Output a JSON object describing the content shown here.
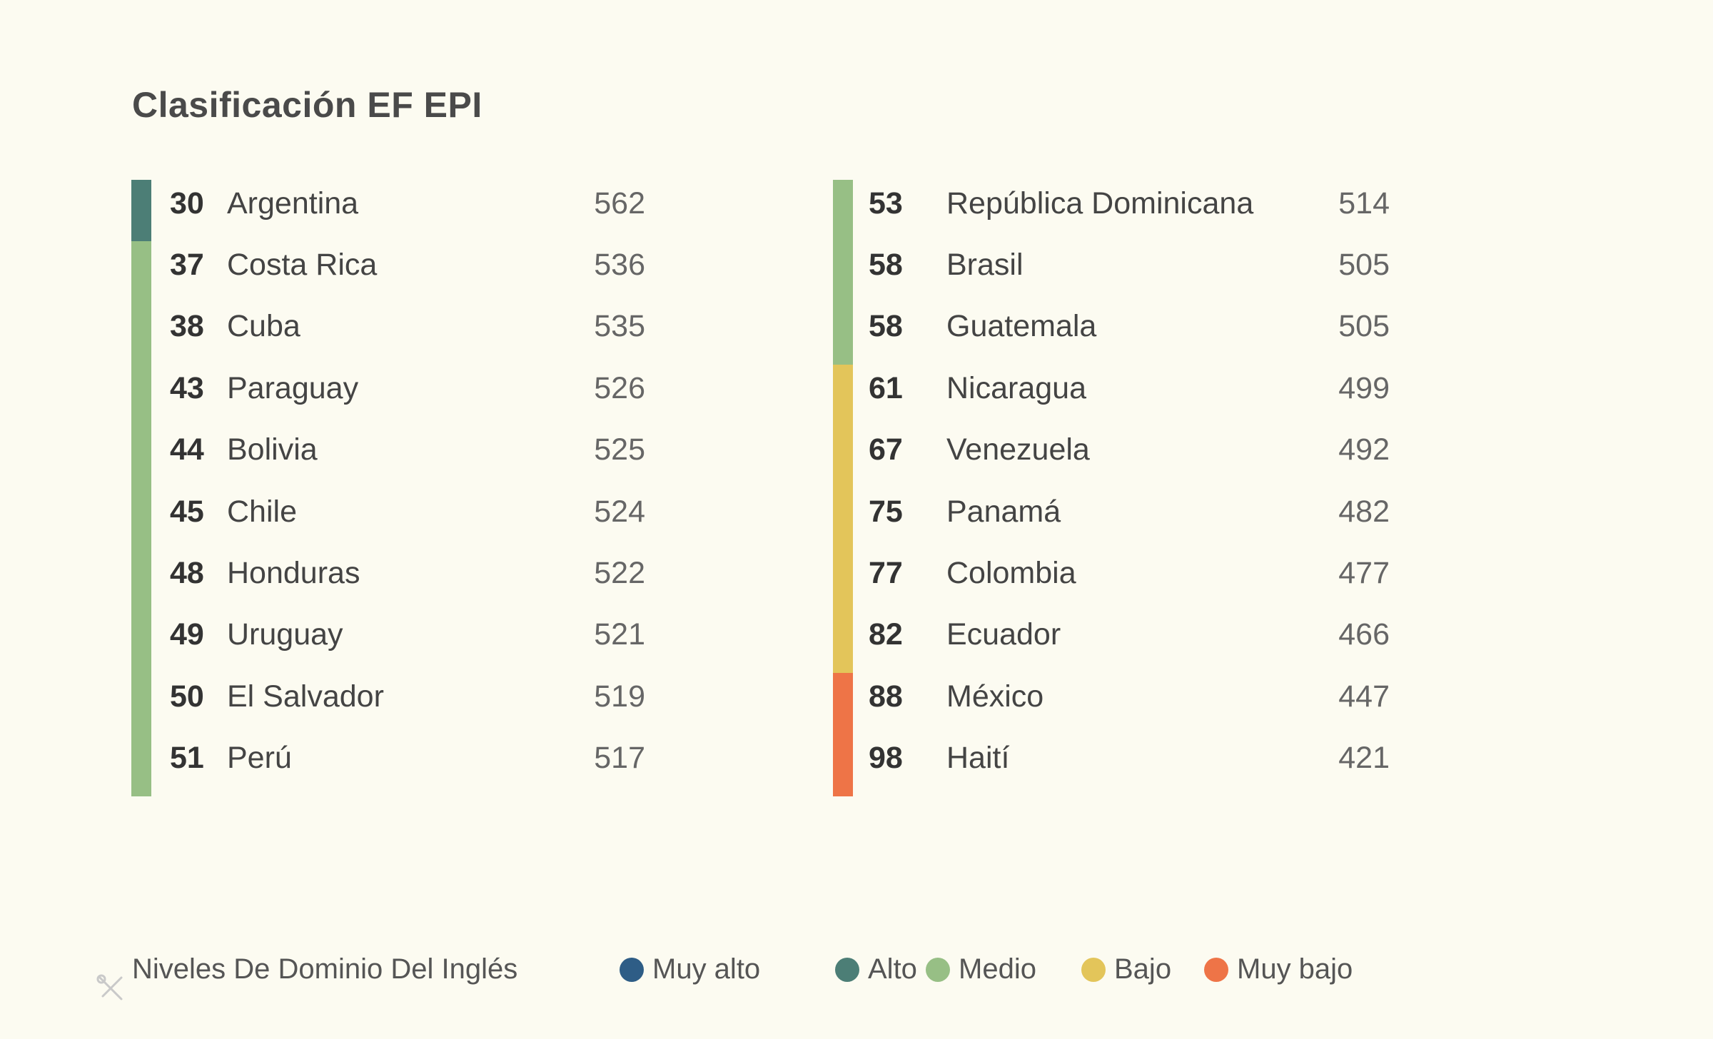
{
  "chart_data": {
    "type": "table",
    "title": "Clasificación EF EPI",
    "levels": [
      {
        "key": "muy_alto",
        "label": "Muy alto",
        "color": "#2e5d86"
      },
      {
        "key": "alto",
        "label": "Alto",
        "color": "#4c7e76"
      },
      {
        "key": "medio",
        "label": "Medio",
        "color": "#97bf85"
      },
      {
        "key": "bajo",
        "label": "Bajo",
        "color": "#e3c55a"
      },
      {
        "key": "muy_bajo",
        "label": "Muy bajo",
        "color": "#ee7447"
      }
    ],
    "legend_title": "Niveles De Dominio Del Inglés",
    "columns": [
      [
        {
          "rank": "30",
          "country": "Argentina",
          "score": "562",
          "level": "alto"
        },
        {
          "rank": "37",
          "country": "Costa Rica",
          "score": "536",
          "level": "medio"
        },
        {
          "rank": "38",
          "country": "Cuba",
          "score": "535",
          "level": "medio"
        },
        {
          "rank": "43",
          "country": "Paraguay",
          "score": "526",
          "level": "medio"
        },
        {
          "rank": "44",
          "country": "Bolivia",
          "score": "525",
          "level": "medio"
        },
        {
          "rank": "45",
          "country": "Chile",
          "score": "524",
          "level": "medio"
        },
        {
          "rank": "48",
          "country": "Honduras",
          "score": "522",
          "level": "medio"
        },
        {
          "rank": "49",
          "country": "Uruguay",
          "score": "521",
          "level": "medio"
        },
        {
          "rank": "50",
          "country": "El Salvador",
          "score": "519",
          "level": "medio"
        },
        {
          "rank": "51",
          "country": "Perú",
          "score": "517",
          "level": "medio"
        }
      ],
      [
        {
          "rank": "53",
          "country": "República Dominicana",
          "score": "514",
          "level": "medio"
        },
        {
          "rank": "58",
          "country": "Brasil",
          "score": "505",
          "level": "medio"
        },
        {
          "rank": "58",
          "country": "Guatemala",
          "score": "505",
          "level": "medio"
        },
        {
          "rank": "61",
          "country": "Nicaragua",
          "score": "499",
          "level": "bajo"
        },
        {
          "rank": "67",
          "country": "Venezuela",
          "score": "492",
          "level": "bajo"
        },
        {
          "rank": "75",
          "country": "Panamá",
          "score": "482",
          "level": "bajo"
        },
        {
          "rank": "77",
          "country": "Colombia",
          "score": "477",
          "level": "bajo"
        },
        {
          "rank": "82",
          "country": "Ecuador",
          "score": "466",
          "level": "bajo"
        },
        {
          "rank": "88",
          "country": "México",
          "score": "447",
          "level": "muy_bajo"
        },
        {
          "rank": "98",
          "country": "Haití",
          "score": "421",
          "level": "muy_bajo"
        }
      ]
    ]
  }
}
